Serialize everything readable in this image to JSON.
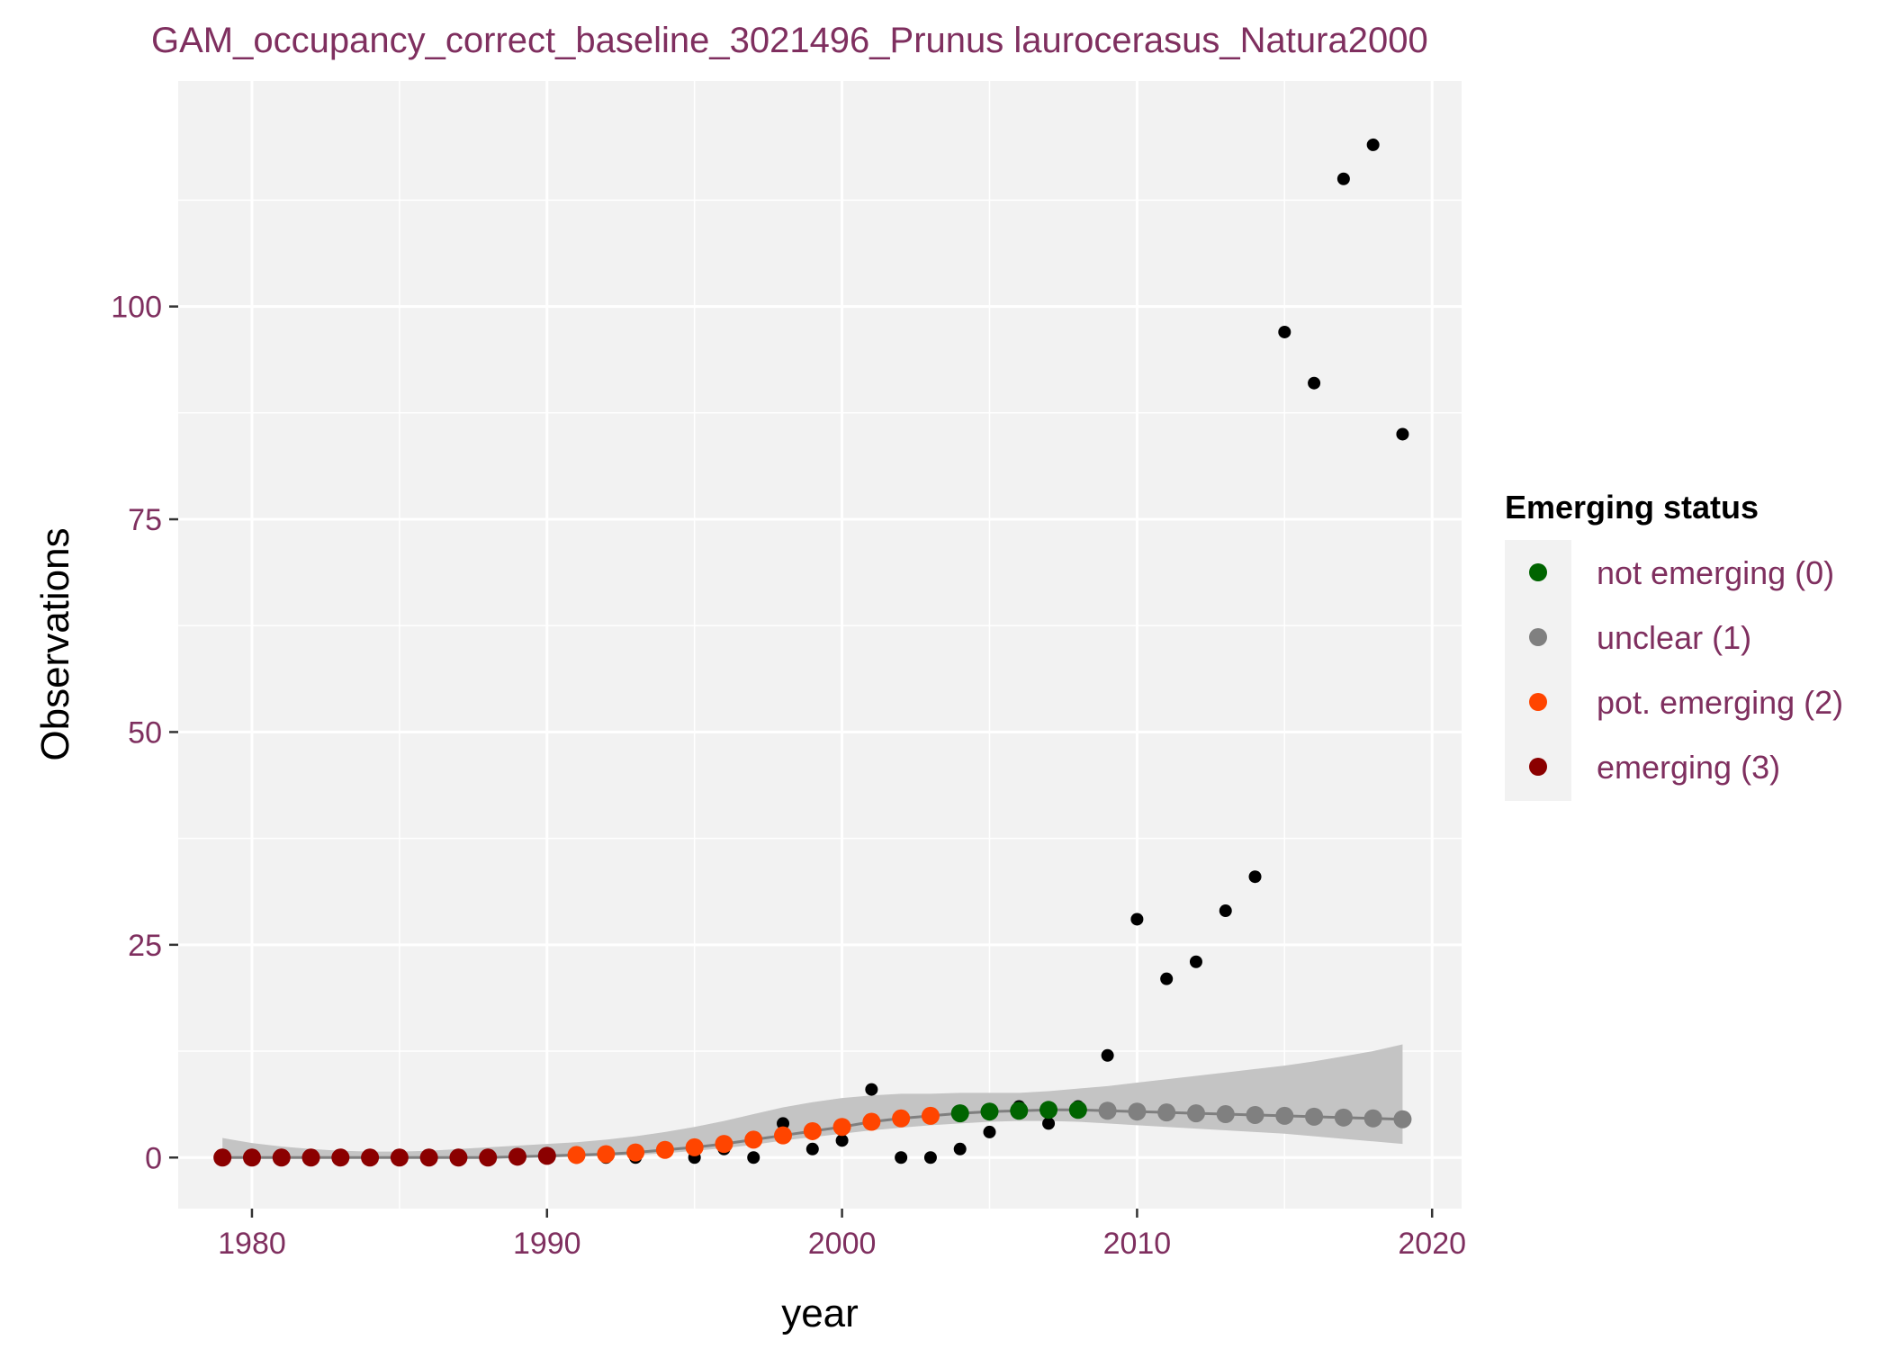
{
  "colors": {
    "text": "#7f2f5f",
    "panel": "#f2f2f2",
    "grid": "#ffffff",
    "ribbon": "#c4c4c4",
    "fit_line": "#7f7f7f",
    "observed": "#000000"
  },
  "chart_data": {
    "type": "scatter",
    "title": "GAM_occupancy_correct_baseline_3021496_Prunus laurocerasus_Natura2000",
    "xlabel": "year",
    "ylabel": "Observations",
    "xlim": [
      1977.5,
      2021
    ],
    "ylim": [
      -6,
      126.5
    ],
    "x_ticks": [
      1980,
      1990,
      2000,
      2010,
      2020
    ],
    "y_ticks": [
      0,
      25,
      50,
      75,
      100
    ],
    "grid": true,
    "legend": {
      "title": "Emerging status",
      "placement": "right",
      "entries": [
        {
          "label": "not emerging (0)",
          "color": "#006400"
        },
        {
          "label": "unclear (1)",
          "color": "#808080"
        },
        {
          "label": "pot. emerging (2)",
          "color": "#ff4500"
        },
        {
          "label": "emerging (3)",
          "color": "#8b0000"
        }
      ]
    },
    "observed": {
      "x": [
        1979,
        1980,
        1981,
        1982,
        1983,
        1984,
        1985,
        1986,
        1987,
        1988,
        1989,
        1990,
        1991,
        1992,
        1993,
        1994,
        1995,
        1996,
        1997,
        1998,
        1999,
        2000,
        2001,
        2002,
        2003,
        2004,
        2005,
        2006,
        2007,
        2008,
        2009,
        2010,
        2011,
        2012,
        2013,
        2014,
        2015,
        2016,
        2017,
        2018,
        2019
      ],
      "y": [
        0,
        0,
        0,
        0,
        0,
        0,
        0,
        0,
        0,
        0,
        0,
        0,
        0,
        0,
        0,
        1,
        0,
        1,
        0,
        4,
        1,
        2,
        8,
        0,
        0,
        1,
        3,
        6,
        4,
        6,
        12,
        28,
        21,
        23,
        29,
        33,
        97,
        91,
        115,
        119,
        85
      ]
    },
    "fit": {
      "x": [
        1979,
        1980,
        1981,
        1982,
        1983,
        1984,
        1985,
        1986,
        1987,
        1988,
        1989,
        1990,
        1991,
        1992,
        1993,
        1994,
        1995,
        1996,
        1997,
        1998,
        1999,
        2000,
        2001,
        2002,
        2003,
        2004,
        2005,
        2006,
        2007,
        2008,
        2009,
        2010,
        2011,
        2012,
        2013,
        2014,
        2015,
        2016,
        2017,
        2018,
        2019
      ],
      "y": [
        0,
        0,
        0,
        0,
        0,
        0,
        0,
        0,
        0,
        0,
        0.1,
        0.2,
        0.3,
        0.4,
        0.6,
        0.9,
        1.2,
        1.6,
        2.1,
        2.6,
        3.1,
        3.6,
        4.2,
        4.6,
        4.9,
        5.2,
        5.4,
        5.5,
        5.6,
        5.6,
        5.5,
        5.4,
        5.3,
        5.2,
        5.1,
        5.0,
        4.9,
        4.8,
        4.7,
        4.6,
        4.5
      ],
      "lower": [
        0,
        0,
        0,
        0,
        0,
        0,
        0,
        0,
        0,
        0,
        0,
        0,
        0.1,
        0.2,
        0.3,
        0.5,
        0.8,
        1.1,
        1.5,
        2.0,
        2.4,
        2.8,
        3.2,
        3.5,
        3.8,
        4.0,
        4.2,
        4.3,
        4.3,
        4.2,
        4.0,
        3.8,
        3.6,
        3.4,
        3.2,
        3.0,
        2.8,
        2.5,
        2.2,
        1.9,
        1.6
      ],
      "upper": [
        2.3,
        1.7,
        1.3,
        1.0,
        0.8,
        0.7,
        0.7,
        0.8,
        1.0,
        1.2,
        1.4,
        1.6,
        1.8,
        2.1,
        2.5,
        3.0,
        3.6,
        4.3,
        5.1,
        5.9,
        6.5,
        7.0,
        7.3,
        7.5,
        7.5,
        7.6,
        7.6,
        7.6,
        7.8,
        8.1,
        8.4,
        8.8,
        9.2,
        9.6,
        10.0,
        10.4,
        10.8,
        11.3,
        11.9,
        12.5,
        13.3
      ],
      "status": [
        3,
        3,
        3,
        3,
        3,
        3,
        3,
        3,
        3,
        3,
        3,
        3,
        2,
        2,
        2,
        2,
        2,
        2,
        2,
        2,
        2,
        2,
        2,
        2,
        2,
        0,
        0,
        0,
        0,
        0,
        1,
        1,
        1,
        1,
        1,
        1,
        1,
        1,
        1,
        1,
        1
      ]
    }
  }
}
